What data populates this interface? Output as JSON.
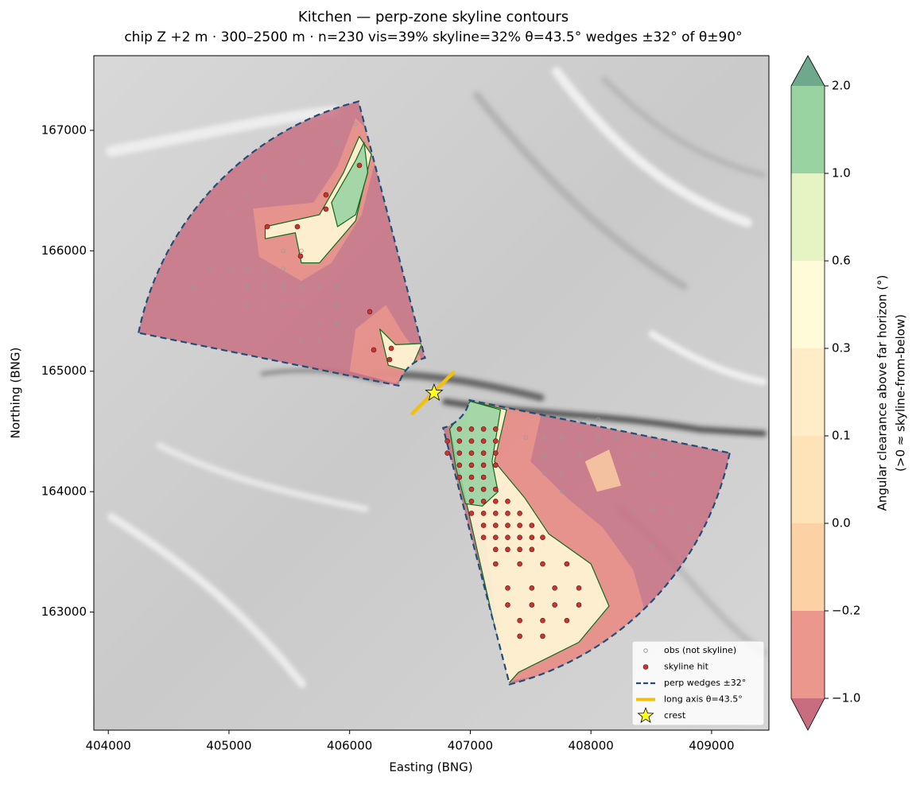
{
  "chart_data": {
    "type": "contour_map",
    "title": "Kitchen — perp-zone skyline contours",
    "subtitle": "chip Z +2 m · 300–2500 m · n=230  vis=39%  skyline=32%  θ=43.5°  wedges ±32° of θ±90°",
    "x_label": "Easting (BNG)",
    "y_label": "Northing (BNG)",
    "xlim": [
      403880,
      409475
    ],
    "ylim": [
      162020,
      167620
    ],
    "xticks": [
      404000,
      405000,
      406000,
      407000,
      408000,
      409000
    ],
    "yticks": [
      163000,
      164000,
      165000,
      166000,
      167000
    ],
    "colorbar": {
      "label": "Angular clearance above far horizon (°)",
      "sublabel": "(>0 ≈ skyline-from-below)",
      "ticks": [
        {
          "value": -1,
          "label": "−1.0"
        },
        {
          "value": -0.2,
          "label": "−0.2"
        },
        {
          "value": 0,
          "label": "0.0"
        },
        {
          "value": 0.1,
          "label": "0.1"
        },
        {
          "value": 0.3,
          "label": "0.3"
        },
        {
          "value": 0.6,
          "label": "0.6"
        },
        {
          "value": 1,
          "label": "1.0"
        },
        {
          "value": 2,
          "label": "2.0"
        }
      ],
      "colors": [
        "#ec978d",
        "#fcd1a3",
        "#fde3b7",
        "#feedc6",
        "#fffbd8",
        "#e6f4c3",
        "#99d3a2"
      ],
      "under_color": "#c86d80",
      "over_color": "#6ea98e"
    },
    "regions": [
      {
        "level": -1,
        "x": [
          405200,
          405700,
          405900,
          406050,
          406250,
          406100,
          405850,
          405600,
          405250
        ],
        "y": [
          166350,
          166400,
          166700,
          167100,
          166900,
          166300,
          165900,
          165750,
          165950
        ]
      },
      {
        "level": 0.3,
        "x": [
          405300,
          405750,
          405950,
          406080,
          406180,
          406050,
          405750,
          405600,
          405550,
          405300
        ],
        "y": [
          166200,
          166300,
          166650,
          166950,
          166800,
          166250,
          165900,
          165900,
          166150,
          166100
        ]
      },
      {
        "level": 1,
        "x": [
          405850,
          406050,
          406120,
          406150,
          406050,
          405900
        ],
        "y": [
          166400,
          166750,
          166900,
          166650,
          166300,
          166200
        ]
      },
      {
        "level": -1,
        "x": [
          406050,
          406300,
          406450,
          406600,
          406380,
          406000
        ],
        "y": [
          165350,
          165550,
          165300,
          165100,
          164900,
          165000
        ]
      },
      {
        "level": 0.3,
        "x": [
          406250,
          406380,
          406600,
          406500,
          406320
        ],
        "y": [
          165350,
          165220,
          165230,
          165000,
          165050
        ]
      },
      {
        "level": -1,
        "x": [
          406950,
          407600,
          407500,
          407800,
          408100,
          408350,
          408450,
          408300,
          407900,
          407300
        ],
        "y": [
          164760,
          164700,
          164250,
          163950,
          163700,
          163350,
          163000,
          162750,
          162550,
          162420
        ]
      },
      {
        "level": -0.2,
        "x": [
          407950,
          408150,
          408250,
          408050
        ],
        "y": [
          164250,
          164350,
          164050,
          164000
        ]
      },
      {
        "level": 0.3,
        "x": [
          406830,
          407000,
          407300,
          407200,
          407450,
          407650,
          408000,
          408150,
          407900,
          407400,
          407310
        ],
        "y": [
          164520,
          164750,
          164680,
          164250,
          163950,
          163650,
          163400,
          163050,
          162750,
          162500,
          162400
        ]
      },
      {
        "level": 1,
        "x": [
          406830,
          407000,
          407250,
          407180,
          407230,
          407100,
          406960,
          406880
        ],
        "y": [
          164520,
          164750,
          164680,
          164250,
          164000,
          163880,
          163900,
          164200
        ]
      }
    ],
    "series": [
      {
        "name": "obs (not skyline)",
        "color": "#9a9a9a",
        "x": [
          405150,
          405300,
          405450,
          405600,
          405750,
          405900,
          405150,
          405300,
          405450,
          405600,
          405750,
          405900,
          404850,
          405000,
          405150,
          405300,
          405450,
          404700,
          404850,
          405000,
          405150,
          405300,
          405600,
          405900,
          406050,
          405450,
          405600,
          405750,
          405900,
          405600,
          405750,
          407610,
          407760,
          407910,
          408060,
          407460,
          407610,
          407760,
          407910,
          408060,
          408210,
          408360,
          407610,
          407910,
          408360,
          408510,
          407610,
          407760,
          408510,
          408660,
          407760,
          408360,
          408510,
          408660,
          408810,
          408510,
          408660
        ],
        "y": [
          165550,
          165550,
          165550,
          165550,
          165550,
          165550,
          165700,
          165700,
          165700,
          165700,
          165700,
          165700,
          165850,
          165850,
          165850,
          165850,
          165850,
          165700,
          165550,
          166300,
          166450,
          166600,
          166750,
          166900,
          167050,
          166000,
          166000,
          165400,
          165400,
          165250,
          165250,
          164600,
          164600,
          164600,
          164600,
          164450,
          164450,
          164450,
          164450,
          164450,
          164450,
          164450,
          164300,
          164300,
          164300,
          164300,
          164150,
          164150,
          164150,
          164150,
          164000,
          163850,
          163850,
          163850,
          163700,
          163550,
          163400
        ]
      },
      {
        "name": "skyline hit",
        "color": "#c8372d",
        "x": [
          406081,
          405804,
          405804,
          405567,
          405317,
          405593,
          406167,
          406200,
          406345,
          406331,
          406910,
          407010,
          407110,
          407210,
          406810,
          406910,
          407010,
          407110,
          407210,
          406810,
          406910,
          407010,
          407110,
          407210,
          406910,
          407010,
          407110,
          407210,
          406910,
          407010,
          407110,
          407010,
          407110,
          407210,
          407010,
          407110,
          407210,
          407310,
          407010,
          407110,
          407210,
          407310,
          407410,
          407110,
          407210,
          407310,
          407410,
          407510,
          407110,
          407210,
          407310,
          407410,
          407510,
          407600,
          407210,
          407310,
          407410,
          407510,
          407210,
          407410,
          407600,
          407800,
          407310,
          407510,
          407700,
          407900,
          407310,
          407510,
          407700,
          407900,
          407410,
          407600,
          407800,
          407410,
          407600
        ],
        "y": [
          166709,
          166464,
          166346,
          166200,
          166200,
          165956,
          165494,
          165177,
          165190,
          165097,
          164520,
          164520,
          164520,
          164520,
          164420,
          164420,
          164420,
          164420,
          164420,
          164320,
          164320,
          164320,
          164320,
          164320,
          164220,
          164220,
          164220,
          164220,
          164120,
          164120,
          164120,
          164020,
          164020,
          164020,
          163920,
          163920,
          163920,
          163920,
          163820,
          163820,
          163820,
          163820,
          163820,
          163720,
          163720,
          163720,
          163720,
          163720,
          163620,
          163620,
          163620,
          163620,
          163620,
          163620,
          163520,
          163520,
          163520,
          163520,
          163400,
          163400,
          163400,
          163400,
          163200,
          163200,
          163200,
          163200,
          163060,
          163060,
          163060,
          163060,
          162930,
          162930,
          162930,
          162800,
          162800
        ]
      },
      {
        "name": "perp wedges ±32°",
        "color": "#1f4e79",
        "center_x": 406700,
        "center_y": 164820,
        "theta": 43.5,
        "perp_offset": 90,
        "half_angle": 32,
        "r": [
          300,
          2500
        ]
      },
      {
        "name": "long axis θ=43.5°",
        "color": "#f2c00e",
        "x": [
          406520,
          406860
        ],
        "y": [
          164650,
          164990
        ]
      },
      {
        "name": "crest",
        "color": "#ffff22",
        "x": [
          406700
        ],
        "y": [
          164820
        ]
      }
    ]
  }
}
